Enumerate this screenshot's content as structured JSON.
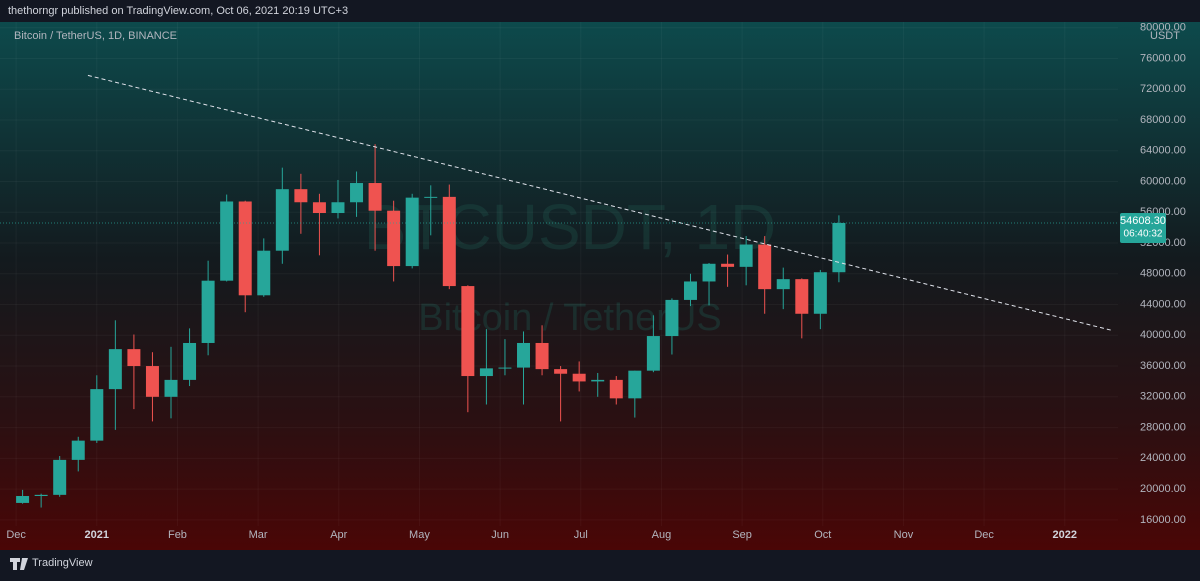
{
  "header": {
    "publisher": "thethorngr published on TradingView.com, Oct 06, 2021 20:19 UTC+3",
    "footer": "TradingView"
  },
  "chart_data": {
    "type": "candlestick",
    "title": "Bitcoin / TetherUS, 1D, BINANCE",
    "watermark": "BTCUSDT, 1D",
    "watermark_subtitle": "Bitcoin / TetherUS",
    "y_axis_label": "USDT",
    "up_color": "#26a69a",
    "down_color": "#ef5350",
    "x": [
      0.08,
      0.31,
      0.54,
      0.77,
      1.0,
      1.23,
      1.46,
      1.69,
      1.92,
      2.15,
      2.38,
      2.61,
      2.84,
      3.07,
      3.3,
      3.53,
      3.76,
      3.99,
      4.22,
      4.45,
      4.68,
      4.91,
      5.14,
      5.37,
      5.6,
      5.83,
      6.06,
      6.29,
      6.52,
      6.75,
      6.98,
      7.21,
      7.44,
      7.67,
      7.9,
      8.13,
      8.36,
      8.59,
      8.82,
      9.05,
      9.28,
      9.51,
      9.74,
      9.97,
      10.2
    ],
    "open": [
      18200,
      19100,
      19250,
      23800,
      26300,
      33000,
      38200,
      36000,
      32000,
      34200,
      39000,
      47100,
      57400,
      45200,
      51000,
      59000,
      57300,
      55900,
      57300,
      59800,
      56200,
      49000,
      57900,
      58000,
      46400,
      34700,
      35700,
      35800,
      39000,
      35600,
      35000,
      34000,
      34200,
      31800,
      35400,
      39900,
      44600,
      47000,
      49300,
      48900,
      51800,
      46000,
      47300,
      42800,
      48200
    ],
    "high": [
      19900,
      19400,
      24300,
      26800,
      34800,
      41950,
      40100,
      37800,
      38500,
      40900,
      49700,
      58300,
      57500,
      52600,
      61800,
      61000,
      58400,
      60200,
      61300,
      64850,
      57500,
      58400,
      59500,
      59600,
      46500,
      40800,
      39500,
      40500,
      41300,
      36000,
      36600,
      35100,
      34700,
      35400,
      42600,
      44800,
      48000,
      49400,
      50500,
      52900,
      52900,
      48800,
      47400,
      48500,
      55600
    ],
    "low": [
      18100,
      17600,
      19000,
      22300,
      26000,
      27700,
      30400,
      28800,
      29200,
      33400,
      37400,
      47000,
      43000,
      45000,
      49300,
      53200,
      50400,
      55200,
      55400,
      51000,
      47000,
      48700,
      53000,
      46000,
      30000,
      31000,
      34800,
      31000,
      34800,
      28800,
      32700,
      32000,
      31000,
      29300,
      35200,
      37500,
      43800,
      43900,
      46300,
      46500,
      42800,
      43400,
      39600,
      40800,
      46900
    ],
    "close": [
      19100,
      19250,
      23800,
      26300,
      33000,
      38200,
      36000,
      32000,
      34200,
      39000,
      47100,
      57400,
      45200,
      51000,
      59000,
      57300,
      55900,
      57300,
      59800,
      56200,
      49000,
      57900,
      58000,
      46400,
      34700,
      35700,
      35800,
      39000,
      35600,
      35000,
      34000,
      34200,
      31800,
      35400,
      39900,
      44600,
      47000,
      49300,
      48900,
      51800,
      46000,
      47300,
      42800,
      48200,
      54608.3
    ],
    "last_price": {
      "value": 54608.3,
      "label": "54608.30"
    },
    "countdown": "06:40:32",
    "trendline": {
      "x": [
        0.89,
        13.6
      ],
      "y": [
        73800,
        40600
      ]
    },
    "xlim": [
      -0.2,
      13.66
    ],
    "xticks": [
      {
        "value": 0,
        "label": "Dec"
      },
      {
        "value": 1,
        "label": "2021"
      },
      {
        "value": 2,
        "label": "Feb"
      },
      {
        "value": 3,
        "label": "Mar"
      },
      {
        "value": 4,
        "label": "Apr"
      },
      {
        "value": 5,
        "label": "May"
      },
      {
        "value": 6,
        "label": "Jun"
      },
      {
        "value": 7,
        "label": "Jul"
      },
      {
        "value": 8,
        "label": "Aug"
      },
      {
        "value": 9,
        "label": "Sep"
      },
      {
        "value": 10,
        "label": "Oct"
      },
      {
        "value": 11,
        "label": "Nov"
      },
      {
        "value": 12,
        "label": "Dec"
      },
      {
        "value": 13,
        "label": "2022"
      }
    ],
    "ylim": [
      15200,
      81000
    ],
    "yticks": [
      {
        "value": 16000,
        "label": "16000.00"
      },
      {
        "value": 20000,
        "label": "20000.00"
      },
      {
        "value": 24000,
        "label": "24000.00"
      },
      {
        "value": 28000,
        "label": "28000.00"
      },
      {
        "value": 32000,
        "label": "32000.00"
      },
      {
        "value": 36000,
        "label": "36000.00"
      },
      {
        "value": 40000,
        "label": "40000.00"
      },
      {
        "value": 44000,
        "label": "44000.00"
      },
      {
        "value": 48000,
        "label": "48000.00"
      },
      {
        "value": 52000,
        "label": "52000.00"
      },
      {
        "value": 56000,
        "label": "56000.00"
      },
      {
        "value": 60000,
        "label": "60000.00"
      },
      {
        "value": 64000,
        "label": "64000.00"
      },
      {
        "value": 68000,
        "label": "68000.00"
      },
      {
        "value": 72000,
        "label": "72000.00"
      },
      {
        "value": 76000,
        "label": "76000.00"
      },
      {
        "value": 80000,
        "label": "80000.00"
      }
    ]
  }
}
